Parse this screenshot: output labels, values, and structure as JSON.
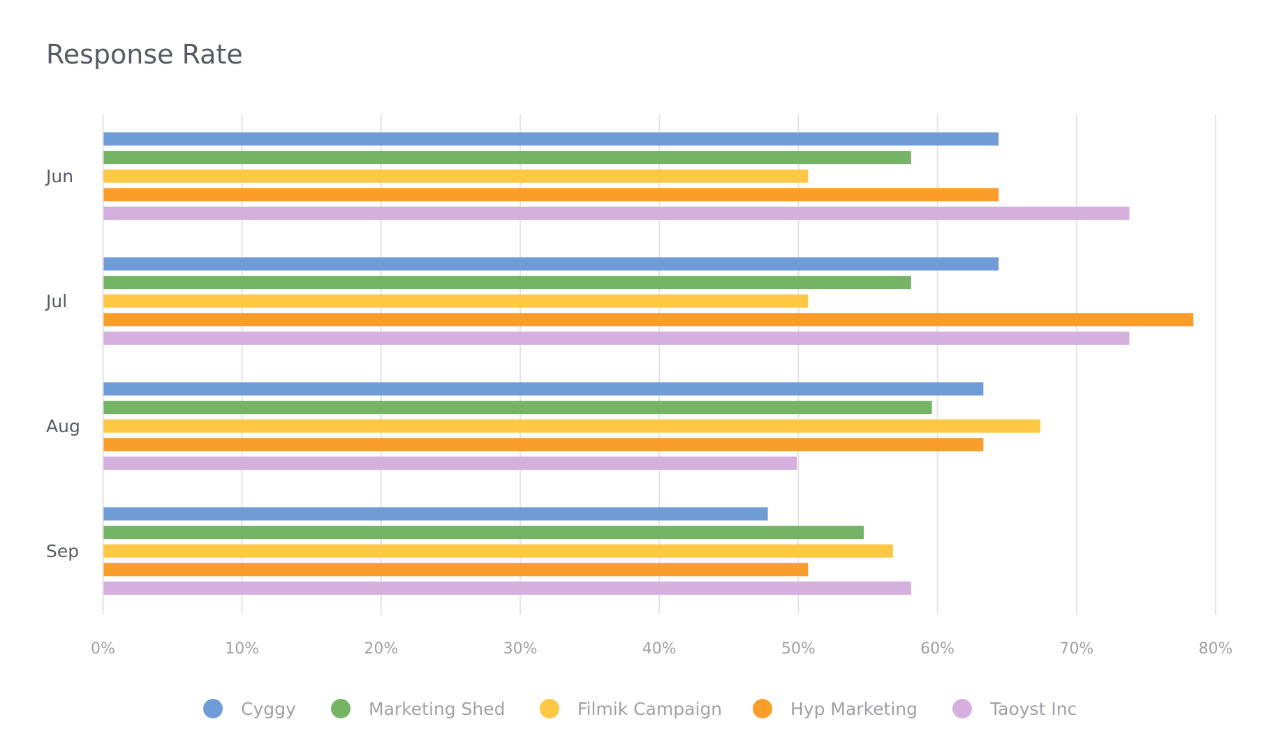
{
  "chart_data": {
    "type": "bar",
    "orientation": "horizontal",
    "title": "Response Rate",
    "categories": [
      "Jun",
      "Jul",
      "Aug",
      "Sep"
    ],
    "series": [
      {
        "name": "Cyggy",
        "color": "#6f9bd6",
        "values": [
          64.4,
          64.4,
          63.3,
          47.8
        ]
      },
      {
        "name": "Marketing Shed",
        "color": "#75b365",
        "values": [
          58.1,
          58.1,
          59.6,
          54.7
        ]
      },
      {
        "name": "Filmik Campaign",
        "color": "#fec744",
        "values": [
          50.7,
          50.7,
          67.4,
          56.8
        ]
      },
      {
        "name": "Hyp Marketing",
        "color": "#fb9d2b",
        "values": [
          64.4,
          78.4,
          63.3,
          50.7
        ]
      },
      {
        "name": "Taoyst Inc",
        "color": "#d5b0df",
        "values": [
          73.8,
          73.8,
          49.9,
          58.1
        ]
      }
    ],
    "xlim": [
      0,
      80
    ],
    "xticks": [
      "0%",
      "10%",
      "20%",
      "30%",
      "40%",
      "50%",
      "60%",
      "70%",
      "80%"
    ],
    "grid": true,
    "legend": "bottom"
  }
}
